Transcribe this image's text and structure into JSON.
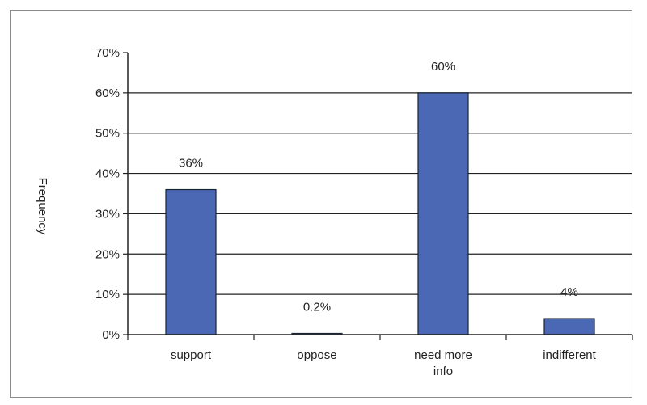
{
  "chart_data": {
    "type": "bar",
    "categories": [
      [
        "support"
      ],
      [
        "oppose"
      ],
      [
        "need more",
        "info"
      ],
      [
        "indifferent"
      ]
    ],
    "values": [
      36,
      0.2,
      60,
      4
    ],
    "data_labels": [
      "36%",
      "0.2%",
      "60%",
      "4%"
    ],
    "title": "",
    "xlabel": "",
    "ylabel": "Frequency",
    "ylim": [
      0,
      70
    ],
    "yticks": [
      0,
      10,
      20,
      30,
      40,
      50,
      60,
      70
    ],
    "ytick_labels": [
      "0%",
      "10%",
      "20%",
      "30%",
      "40%",
      "50%",
      "60%",
      "70%"
    ],
    "grid": "horizontal",
    "bar_color": "#4a68b3",
    "bar_edge_color": "#1b2233"
  }
}
